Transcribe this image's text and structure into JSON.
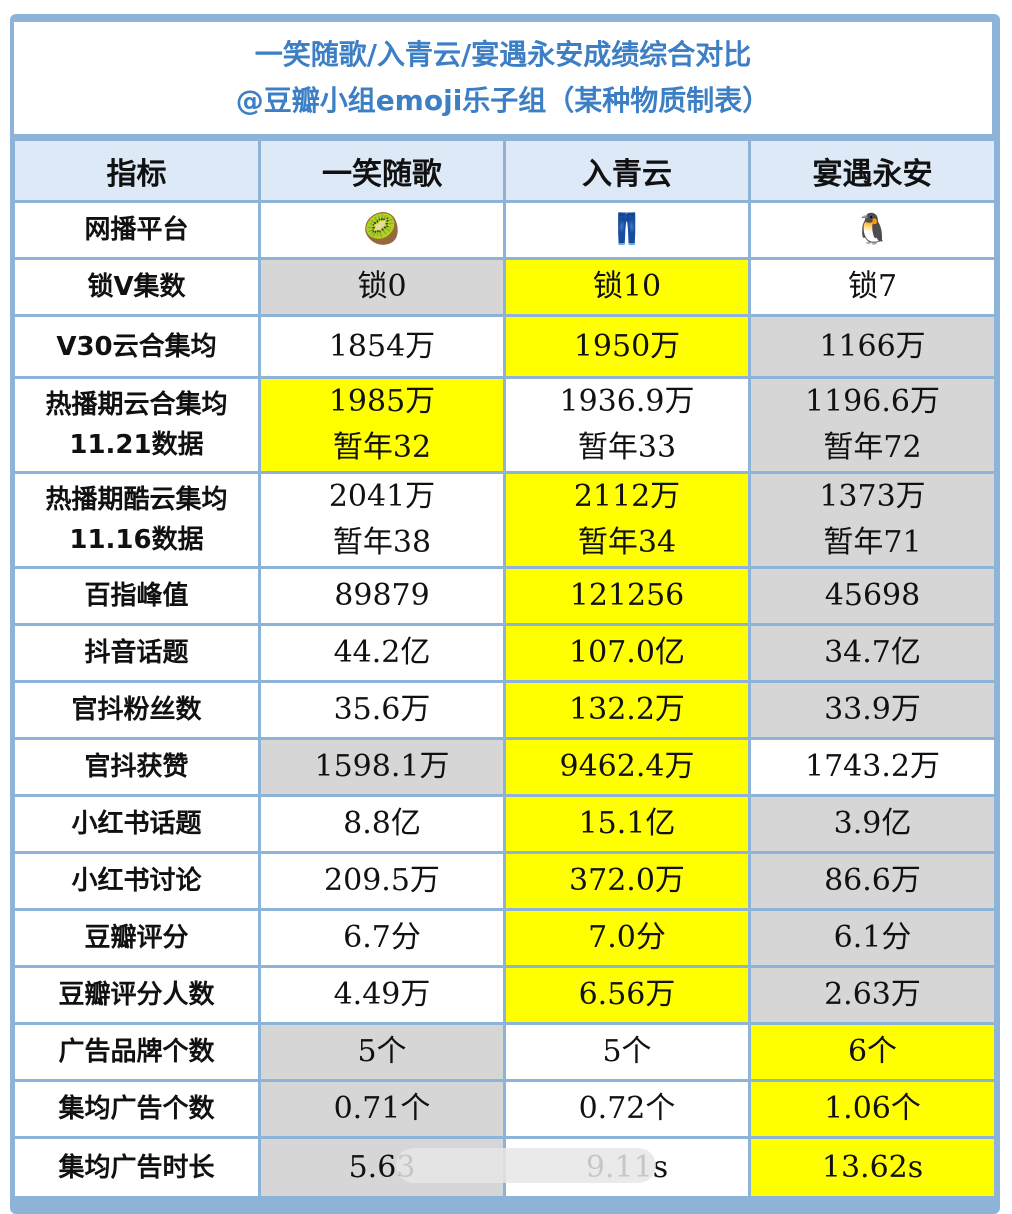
{
  "title": {
    "line1": "一笑随歌/入青云/宴遇永安成绩综合对比",
    "line2": "@豆瓣小组emoji乐子组（某种物质制表）"
  },
  "header": [
    "指标",
    "一笑随歌",
    "入青云",
    "宴遇永安"
  ],
  "colors": {
    "highlight": "#ffff00",
    "lowlight": "#d6d6d6",
    "border": "#8db3d8",
    "title": "#3d7fc4"
  },
  "rows": [
    {
      "metric": [
        "网播平台"
      ],
      "cells": [
        {
          "lines": [
            "🥝"
          ],
          "tone": "white",
          "icon": "kiwi-icon"
        },
        {
          "lines": [
            "👖"
          ],
          "tone": "white",
          "icon": "jeans-icon"
        },
        {
          "lines": [
            "🐧"
          ],
          "tone": "white",
          "icon": "penguin-icon"
        }
      ]
    },
    {
      "metric": [
        "锁V集数"
      ],
      "cells": [
        {
          "lines": [
            "锁0"
          ],
          "tone": "gray"
        },
        {
          "lines": [
            "锁10"
          ],
          "tone": "yellow"
        },
        {
          "lines": [
            "锁7"
          ],
          "tone": "white"
        }
      ]
    },
    {
      "metric": [
        "V30云合集均"
      ],
      "cells": [
        {
          "lines": [
            "1854万"
          ],
          "tone": "white"
        },
        {
          "lines": [
            "1950万"
          ],
          "tone": "yellow"
        },
        {
          "lines": [
            "1166万"
          ],
          "tone": "gray"
        }
      ]
    },
    {
      "metric": [
        "热播期云合集均",
        "11.21数据"
      ],
      "cells": [
        {
          "lines": [
            "1985万",
            "暂年32"
          ],
          "tone": "yellow"
        },
        {
          "lines": [
            "1936.9万",
            "暂年33"
          ],
          "tone": "white"
        },
        {
          "lines": [
            "1196.6万",
            "暂年72"
          ],
          "tone": "gray"
        }
      ]
    },
    {
      "metric": [
        "热播期酷云集均",
        "11.16数据"
      ],
      "cells": [
        {
          "lines": [
            "2041万",
            "暂年38"
          ],
          "tone": "white"
        },
        {
          "lines": [
            "2112万",
            "暂年34"
          ],
          "tone": "yellow"
        },
        {
          "lines": [
            "1373万",
            "暂年71"
          ],
          "tone": "gray"
        }
      ]
    },
    {
      "metric": [
        "百指峰值"
      ],
      "cells": [
        {
          "lines": [
            "89879"
          ],
          "tone": "white"
        },
        {
          "lines": [
            "121256"
          ],
          "tone": "yellow"
        },
        {
          "lines": [
            "45698"
          ],
          "tone": "gray"
        }
      ]
    },
    {
      "metric": [
        "抖音话题"
      ],
      "cells": [
        {
          "lines": [
            "44.2亿"
          ],
          "tone": "white"
        },
        {
          "lines": [
            "107.0亿"
          ],
          "tone": "yellow"
        },
        {
          "lines": [
            "34.7亿"
          ],
          "tone": "gray"
        }
      ]
    },
    {
      "metric": [
        "官抖粉丝数"
      ],
      "cells": [
        {
          "lines": [
            "35.6万"
          ],
          "tone": "white"
        },
        {
          "lines": [
            "132.2万"
          ],
          "tone": "yellow"
        },
        {
          "lines": [
            "33.9万"
          ],
          "tone": "gray"
        }
      ]
    },
    {
      "metric": [
        "官抖获赞"
      ],
      "cells": [
        {
          "lines": [
            "1598.1万"
          ],
          "tone": "gray"
        },
        {
          "lines": [
            "9462.4万"
          ],
          "tone": "yellow"
        },
        {
          "lines": [
            "1743.2万"
          ],
          "tone": "white"
        }
      ]
    },
    {
      "metric": [
        "小红书话题"
      ],
      "cells": [
        {
          "lines": [
            "8.8亿"
          ],
          "tone": "white"
        },
        {
          "lines": [
            "15.1亿"
          ],
          "tone": "yellow"
        },
        {
          "lines": [
            "3.9亿"
          ],
          "tone": "gray"
        }
      ]
    },
    {
      "metric": [
        "小红书讨论"
      ],
      "cells": [
        {
          "lines": [
            "209.5万"
          ],
          "tone": "white"
        },
        {
          "lines": [
            "372.0万"
          ],
          "tone": "yellow"
        },
        {
          "lines": [
            "86.6万"
          ],
          "tone": "gray"
        }
      ]
    },
    {
      "metric": [
        "豆瓣评分"
      ],
      "cells": [
        {
          "lines": [
            "6.7分"
          ],
          "tone": "white"
        },
        {
          "lines": [
            "7.0分"
          ],
          "tone": "yellow"
        },
        {
          "lines": [
            "6.1分"
          ],
          "tone": "gray"
        }
      ]
    },
    {
      "metric": [
        "豆瓣评分人数"
      ],
      "cells": [
        {
          "lines": [
            "4.49万"
          ],
          "tone": "white"
        },
        {
          "lines": [
            "6.56万"
          ],
          "tone": "yellow"
        },
        {
          "lines": [
            "2.63万"
          ],
          "tone": "gray"
        }
      ]
    },
    {
      "metric": [
        "广告品牌个数"
      ],
      "cells": [
        {
          "lines": [
            "5个"
          ],
          "tone": "gray"
        },
        {
          "lines": [
            "5个"
          ],
          "tone": "white"
        },
        {
          "lines": [
            "6个"
          ],
          "tone": "yellow"
        }
      ]
    },
    {
      "metric": [
        "集均广告个数"
      ],
      "cells": [
        {
          "lines": [
            "0.71个"
          ],
          "tone": "gray"
        },
        {
          "lines": [
            "0.72个"
          ],
          "tone": "white"
        },
        {
          "lines": [
            "1.06个"
          ],
          "tone": "yellow"
        }
      ]
    },
    {
      "metric": [
        "集均广告时长"
      ],
      "cells": [
        {
          "lines": [
            "5.63"
          ],
          "tone": "gray"
        },
        {
          "lines": [
            "9.11s"
          ],
          "tone": "white"
        },
        {
          "lines": [
            "13.62s"
          ],
          "tone": "yellow"
        }
      ]
    }
  ]
}
